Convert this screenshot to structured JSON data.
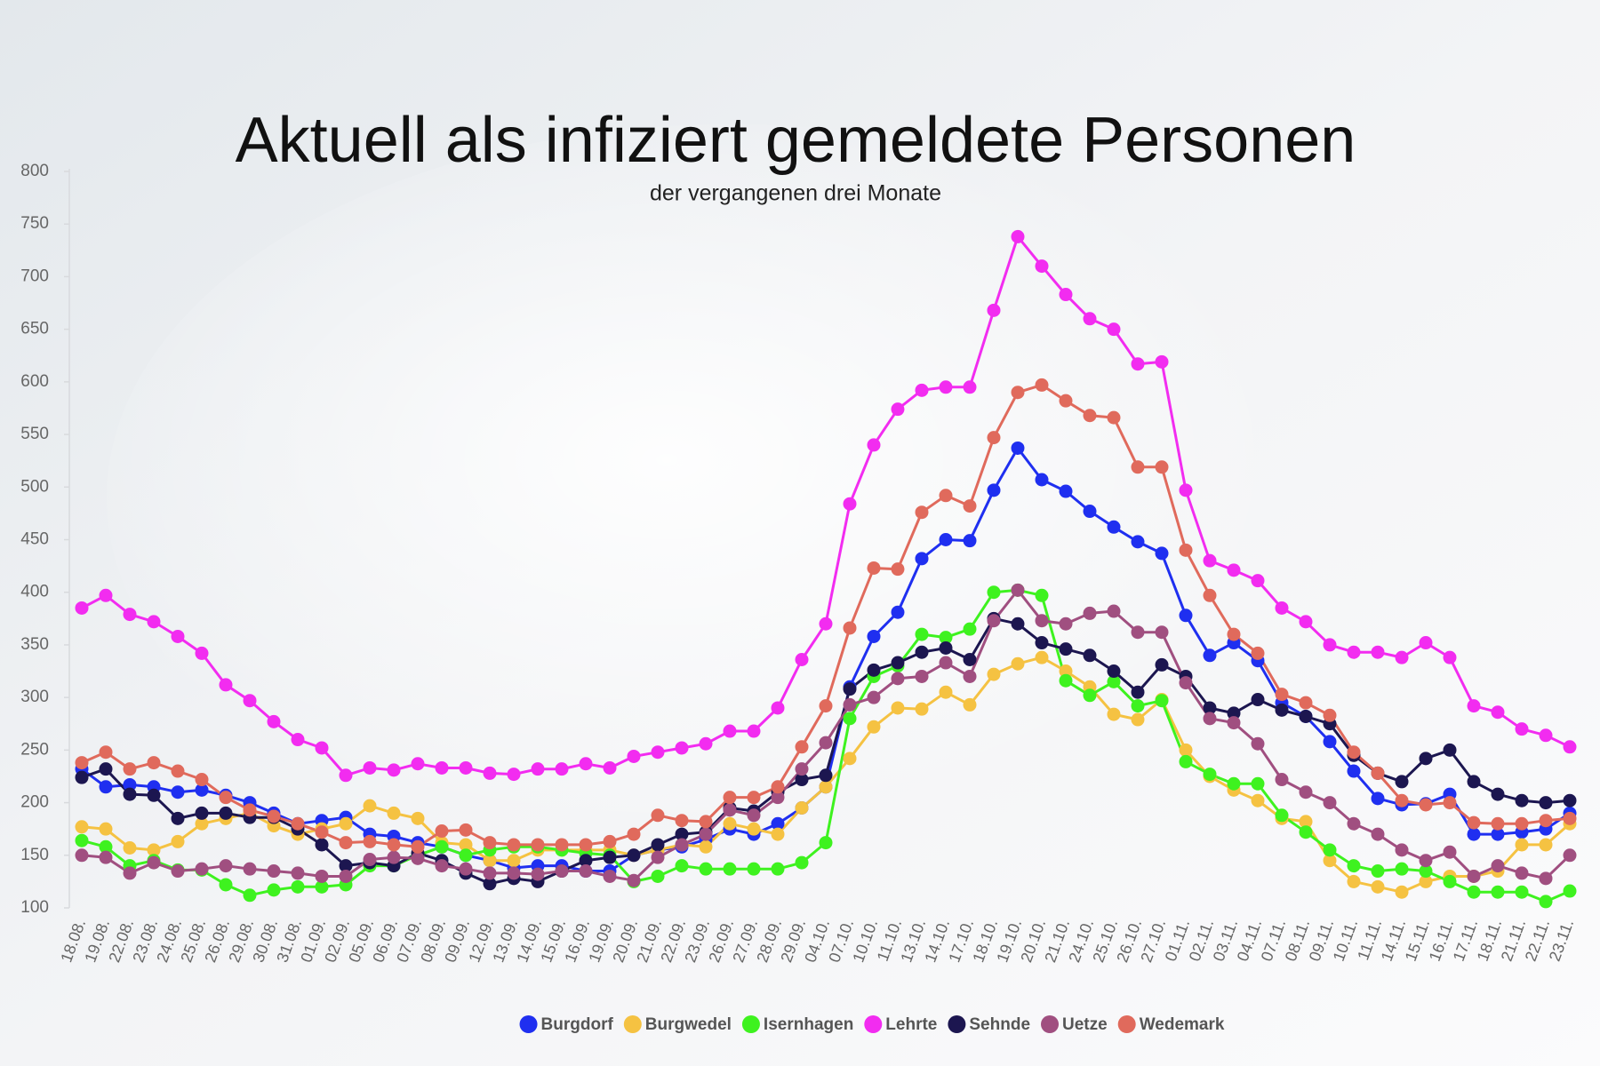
{
  "chart_data": {
    "type": "line",
    "title": "Aktuell als infiziert gemeldete Personen",
    "subtitle": "der vergangenen drei Monate",
    "categories": [
      "18.08.",
      "19.08.",
      "22.08.",
      "23.08.",
      "24.08.",
      "25.08.",
      "26.08.",
      "29.08.",
      "30.08.",
      "31.08.",
      "01.09.",
      "02.09.",
      "05.09.",
      "06.09.",
      "07.09.",
      "08.09.",
      "09.09.",
      "12.09.",
      "13.09.",
      "14.09.",
      "15.09.",
      "16.09.",
      "19.09.",
      "20.09.",
      "21.09.",
      "22.09.",
      "23.09.",
      "26.09.",
      "27.09.",
      "28.09.",
      "29.09.",
      "04.10.",
      "07.10.",
      "10.10.",
      "11.10.",
      "13.10.",
      "14.10.",
      "17.10.",
      "18.10.",
      "19.10.",
      "20.10.",
      "21.10.",
      "24.10.",
      "25.10.",
      "26.10.",
      "27.10.",
      "01.11.",
      "02.11.",
      "03.11.",
      "04.11.",
      "07.11.",
      "08.11.",
      "09.11.",
      "10.11.",
      "11.11.",
      "14.11.",
      "15.11.",
      "16.11.",
      "17.11.",
      "18.11.",
      "21.11.",
      "22.11.",
      "23.11."
    ],
    "series": [
      {
        "name": "Burgdorf",
        "color": "#1f2ff0",
        "values": [
          232,
          215,
          217,
          215,
          210,
          212,
          207,
          200,
          190,
          180,
          183,
          186,
          170,
          168,
          162,
          158,
          150,
          145,
          138,
          140,
          140,
          135,
          135,
          150,
          155,
          158,
          165,
          175,
          170,
          180,
          195,
          215,
          310,
          358,
          381,
          432,
          450,
          449,
          497,
          537,
          507,
          496,
          477,
          462,
          448,
          437,
          378,
          340,
          352,
          335,
          295,
          282,
          258,
          230,
          204,
          198,
          199,
          208,
          170,
          170,
          172,
          175,
          190
        ]
      },
      {
        "name": "Burgwedel",
        "color": "#f5c242",
        "values": [
          177,
          175,
          157,
          155,
          163,
          180,
          185,
          190,
          178,
          170,
          175,
          180,
          197,
          190,
          185,
          162,
          160,
          145,
          145,
          155,
          155,
          155,
          155,
          150,
          155,
          160,
          158,
          180,
          175,
          170,
          195,
          215,
          242,
          272,
          290,
          289,
          305,
          293,
          322,
          332,
          338,
          325,
          310,
          284,
          279,
          298,
          250,
          225,
          212,
          202,
          185,
          182,
          145,
          125,
          120,
          115,
          125,
          130,
          130,
          135,
          160,
          160,
          180
        ]
      },
      {
        "name": "Isernhagen",
        "color": "#3ef21f",
        "values": [
          164,
          158,
          140,
          145,
          136,
          136,
          122,
          112,
          117,
          120,
          120,
          122,
          140,
          140,
          150,
          158,
          150,
          155,
          158,
          158,
          155,
          152,
          150,
          125,
          130,
          140,
          137,
          137,
          137,
          137,
          143,
          162,
          280,
          320,
          330,
          360,
          357,
          365,
          400,
          402,
          397,
          316,
          302,
          315,
          292,
          297,
          239,
          227,
          218,
          218,
          188,
          172,
          155,
          140,
          135,
          137,
          135,
          125,
          115,
          115,
          115,
          106,
          116
        ]
      },
      {
        "name": "Lehrte",
        "color": "#f22cf0",
        "values": [
          385,
          397,
          379,
          372,
          358,
          342,
          312,
          297,
          277,
          260,
          252,
          226,
          233,
          231,
          237,
          233,
          233,
          228,
          227,
          232,
          232,
          237,
          233,
          244,
          248,
          252,
          256,
          268,
          268,
          290,
          336,
          370,
          484,
          540,
          574,
          592,
          595,
          595,
          668,
          738,
          710,
          683,
          660,
          650,
          617,
          619,
          497,
          430,
          421,
          411,
          385,
          372,
          350,
          343,
          343,
          338,
          352,
          338,
          292,
          286,
          270,
          264,
          253
        ]
      },
      {
        "name": "Sehnde",
        "color": "#1c1650",
        "values": [
          224,
          232,
          208,
          207,
          185,
          190,
          190,
          186,
          186,
          175,
          160,
          140,
          143,
          140,
          152,
          145,
          133,
          123,
          128,
          125,
          135,
          145,
          148,
          150,
          160,
          170,
          172,
          195,
          192,
          210,
          222,
          226,
          308,
          326,
          333,
          343,
          347,
          336,
          375,
          370,
          352,
          346,
          340,
          325,
          305,
          331,
          320,
          290,
          285,
          298,
          288,
          282,
          275,
          245,
          228,
          220,
          242,
          250,
          220,
          208,
          202,
          200,
          202
        ]
      },
      {
        "name": "Uetze",
        "color": "#a04f80",
        "values": [
          150,
          148,
          133,
          143,
          135,
          137,
          140,
          137,
          135,
          133,
          130,
          130,
          146,
          148,
          147,
          140,
          137,
          133,
          133,
          132,
          135,
          135,
          130,
          126,
          148,
          160,
          170,
          193,
          188,
          205,
          232,
          257,
          293,
          300,
          318,
          320,
          333,
          320,
          373,
          402,
          373,
          370,
          380,
          382,
          362,
          362,
          314,
          280,
          276,
          256,
          222,
          210,
          200,
          180,
          170,
          155,
          145,
          153,
          130,
          140,
          133,
          128,
          150
        ]
      },
      {
        "name": "Wedemark",
        "color": "#e06a5c",
        "values": [
          238,
          248,
          232,
          238,
          230,
          222,
          205,
          193,
          187,
          180,
          172,
          162,
          163,
          160,
          158,
          173,
          174,
          162,
          160,
          160,
          160,
          160,
          163,
          170,
          188,
          183,
          182,
          205,
          205,
          215,
          253,
          292,
          366,
          423,
          422,
          476,
          492,
          482,
          547,
          590,
          597,
          582,
          568,
          566,
          519,
          519,
          440,
          397,
          360,
          342,
          303,
          295,
          283,
          248,
          228,
          202,
          198,
          200,
          181,
          180,
          180,
          183,
          185
        ]
      }
    ],
    "ylim": [
      100,
      800
    ],
    "yticks": [
      100,
      150,
      200,
      250,
      300,
      350,
      400,
      450,
      500,
      550,
      600,
      650,
      700,
      750,
      800
    ],
    "grid": false
  }
}
